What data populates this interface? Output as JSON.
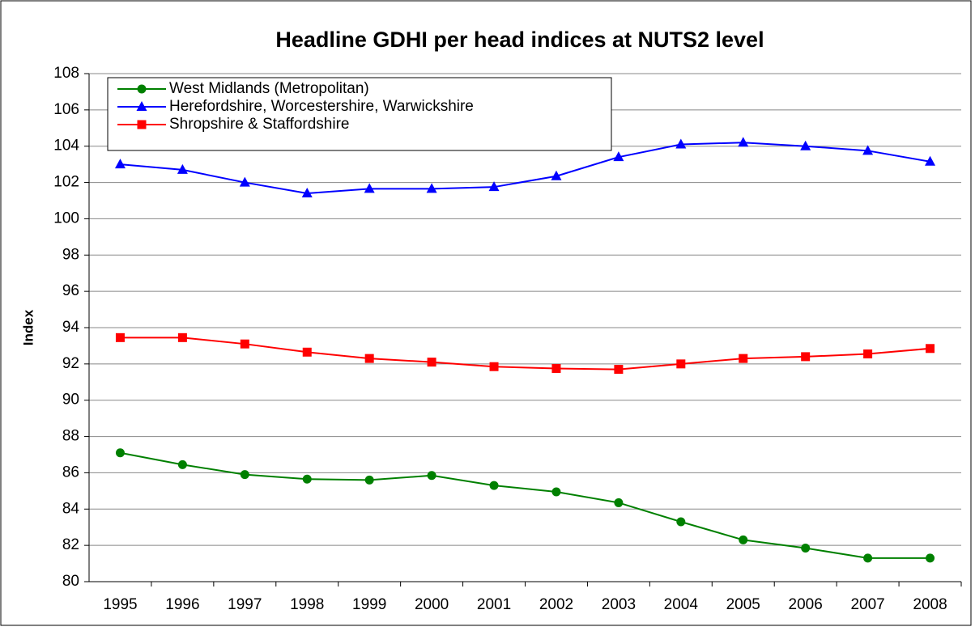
{
  "chart_data": {
    "type": "line",
    "title": "Headline GDHI per head indices at NUTS2 level",
    "y_label": "Index",
    "categories": [
      "1995",
      "1996",
      "1997",
      "1998",
      "1999",
      "2000",
      "2001",
      "2002",
      "2003",
      "2004",
      "2005",
      "2006",
      "2007",
      "2008"
    ],
    "series": [
      {
        "name": "West Midlands (Metropolitan)",
        "color": "#008000",
        "marker": "circle",
        "values": [
          87.1,
          86.45,
          85.9,
          85.65,
          85.6,
          85.85,
          85.3,
          84.95,
          84.35,
          83.3,
          82.3,
          81.85,
          81.3,
          81.3
        ]
      },
      {
        "name": "Herefordshire, Worcestershire, Warwickshire",
        "color": "#0000ff",
        "marker": "triangle",
        "values": [
          103.0,
          102.7,
          102.0,
          101.4,
          101.65,
          101.65,
          101.75,
          102.35,
          103.4,
          104.1,
          104.2,
          104.0,
          103.75,
          103.15
        ]
      },
      {
        "name": "Shropshire & Staffordshire",
        "color": "#ff0000",
        "marker": "square",
        "values": [
          93.45,
          93.45,
          93.1,
          92.65,
          92.3,
          92.1,
          91.85,
          91.75,
          91.7,
          92.0,
          92.3,
          92.4,
          92.55,
          92.85
        ]
      }
    ],
    "ylim": [
      80,
      108
    ],
    "yticks": [
      80,
      82,
      84,
      86,
      88,
      90,
      92,
      94,
      96,
      98,
      100,
      102,
      104,
      106,
      108
    ],
    "grid": true,
    "legend": "top-left"
  }
}
